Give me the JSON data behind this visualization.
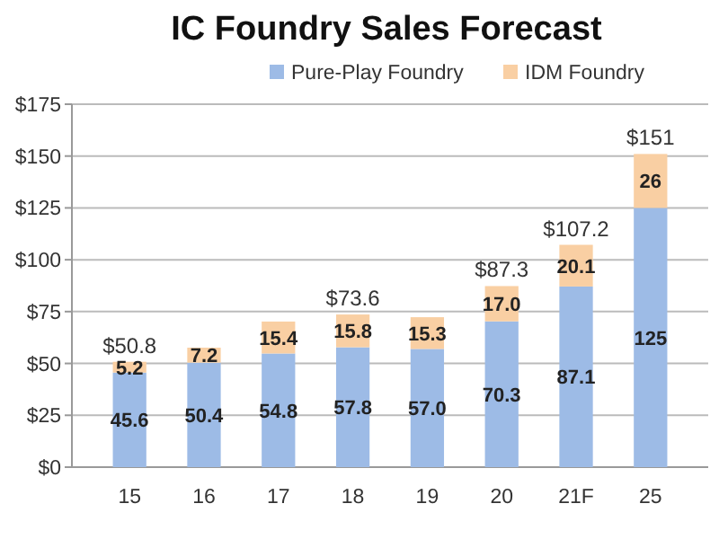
{
  "chart_data": {
    "type": "bar",
    "title": "IC Foundry Sales Forecast",
    "stacked": true,
    "legend": "top",
    "grid": "y",
    "categories": [
      "15",
      "16",
      "17",
      "18",
      "19",
      "20",
      "21F",
      "25"
    ],
    "series": [
      {
        "name": "Pure-Play Foundry",
        "color": "#9dbbe6",
        "values": [
          45.6,
          50.4,
          54.8,
          57.8,
          57.0,
          70.3,
          87.1,
          125
        ],
        "value_labels": [
          "45.6",
          "50.4",
          "54.8",
          "57.8",
          "57.0",
          "70.3",
          "87.1",
          "125"
        ]
      },
      {
        "name": "IDM Foundry",
        "color": "#f9cfa3",
        "values": [
          5.2,
          7.2,
          15.4,
          15.8,
          15.3,
          17.0,
          20.1,
          26
        ],
        "value_labels": [
          "5.2",
          "7.2",
          "15.4",
          "15.8",
          "15.3",
          "17.0",
          "20.1",
          "26"
        ]
      }
    ],
    "totals": [
      "$50.8",
      null,
      null,
      "$73.6",
      null,
      "$87.3",
      "$107.2",
      "$151"
    ],
    "ylim": [
      0,
      175
    ],
    "yticks": [
      {
        "value": 0,
        "label": "$0"
      },
      {
        "value": 25,
        "label": "$25"
      },
      {
        "value": 50,
        "label": "$50"
      },
      {
        "value": 75,
        "label": "$75"
      },
      {
        "value": 100,
        "label": "$100"
      },
      {
        "value": 125,
        "label": "$125"
      },
      {
        "value": 150,
        "label": "$150"
      },
      {
        "value": 175,
        "label": "$175"
      }
    ]
  }
}
